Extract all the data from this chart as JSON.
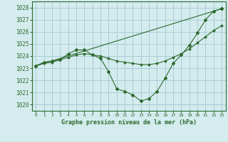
{
  "title": "Graphe pression niveau de la mer (hPa)",
  "bg_color": "#d4ecee",
  "grid_color": "#aacdd4",
  "line_color": "#2d6a2d",
  "xlim": [
    -0.5,
    23.5
  ],
  "ylim": [
    1019.5,
    1028.5
  ],
  "yticks": [
    1020,
    1021,
    1022,
    1023,
    1024,
    1025,
    1026,
    1027,
    1028
  ],
  "xticks": [
    0,
    1,
    2,
    3,
    4,
    5,
    6,
    7,
    8,
    9,
    10,
    11,
    12,
    13,
    14,
    15,
    16,
    17,
    18,
    19,
    20,
    21,
    22,
    23
  ],
  "series": [
    {
      "x": [
        0,
        1,
        2,
        3,
        4,
        5,
        6,
        7,
        8,
        9,
        10,
        11,
        12,
        13,
        14,
        15,
        16,
        17,
        18,
        19,
        20,
        21,
        22,
        23
      ],
      "y": [
        1023.2,
        1023.5,
        1023.6,
        1023.7,
        1024.2,
        1024.5,
        1024.5,
        1024.1,
        1023.8,
        1022.7,
        1021.3,
        1021.1,
        1020.8,
        1020.3,
        1020.5,
        1021.1,
        1022.2,
        1023.4,
        1024.1,
        1024.9,
        1025.9,
        1027.0,
        1027.7,
        1027.9
      ]
    },
    {
      "x": [
        0,
        1,
        2,
        3,
        4,
        5,
        6,
        7,
        8,
        9,
        10,
        11,
        12,
        13,
        14,
        15,
        16,
        17,
        18,
        19,
        20,
        21,
        22,
        23
      ],
      "y": [
        1023.2,
        1023.4,
        1023.5,
        1023.7,
        1023.9,
        1024.1,
        1024.2,
        1024.1,
        1024.0,
        1023.8,
        1023.6,
        1023.5,
        1023.4,
        1023.3,
        1023.3,
        1023.4,
        1023.6,
        1023.9,
        1024.2,
        1024.6,
        1025.1,
        1025.6,
        1026.1,
        1026.5
      ]
    },
    {
      "x": [
        0,
        23
      ],
      "y": [
        1023.2,
        1027.9
      ]
    }
  ]
}
